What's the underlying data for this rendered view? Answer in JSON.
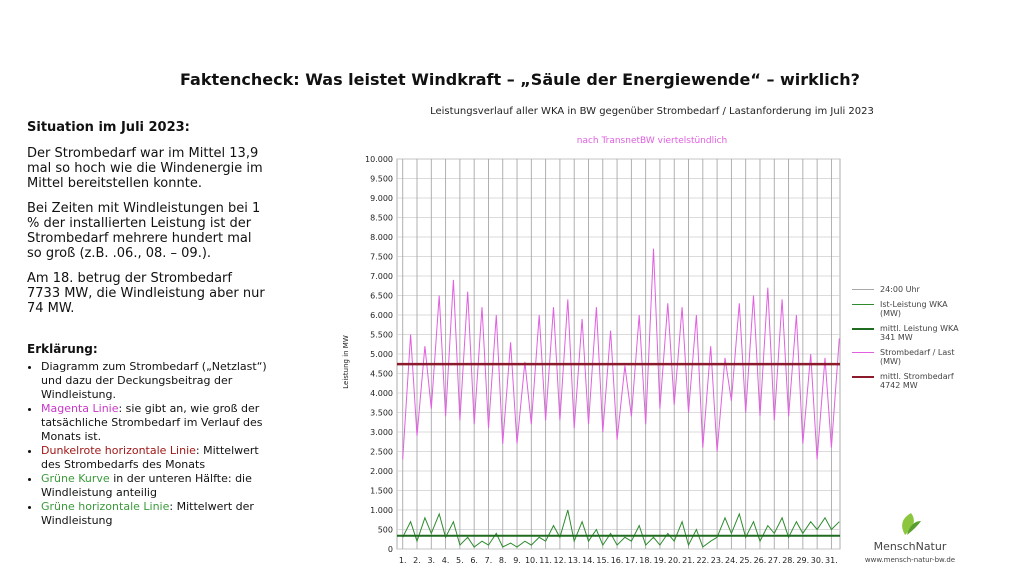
{
  "slide": {
    "title": "Faktencheck: Was leistet Windkraft – „Säule der Energiewende“ –  wirklich?",
    "heading": "Situation im Juli 2023:",
    "paragraphs": [
      "Der Strombedarf war im Mittel 13,9 mal so hoch wie die Windenergie im Mittel bereitstellen konnte.",
      "Bei Zeiten mit Windleistungen bei 1 % der installierten Leistung ist der Strombedarf mehrere hundert mal so groß (z.B. .06., 08. – 09.).",
      "Am 18. betrug der Strombedarf 7733 MW, die Windleistung aber nur 74 MW."
    ],
    "explanation_heading": "Erklärung",
    "bullets": [
      {
        "text": "Diagramm zum Strombedarf („Netzlast“) und dazu der Deckungsbeitrag der Windleistung."
      },
      {
        "lead": "Magenta Linie",
        "lead_color": "#c838c8",
        "text": ": sie gibt an, wie groß der tatsächliche Strombedarf im Verlauf des Monats ist."
      },
      {
        "lead": "Dunkelrote horizontale Linie",
        "lead_color": "#a01818",
        "text": ": Mittelwert des Strombedarfs des Monats"
      },
      {
        "lead": "Grüne Kurve",
        "lead_color": "#3a9a3a",
        "text": " in der unteren Hälfte: die Windleistung anteilig"
      },
      {
        "lead": "Grüne horizontale Linie",
        "lead_color": "#3a9a3a",
        "text": ": Mittelwert der Windleistung"
      }
    ],
    "logo": "MenschNatur",
    "url": "www.mensch-natur-bw.de"
  },
  "chart_data": {
    "type": "line",
    "title": "Leistungsverlauf aller WKA in BW gegenüber  Strombedarf / Lastanforderung im Juli 2023",
    "subtitle": "nach TransnetBW viertelstündlich",
    "ylabel": "Leistung in MW",
    "xlim": [
      0.6,
      31.6
    ],
    "ylim": [
      0,
      10000
    ],
    "grid": true,
    "day_lines": {
      "name": "24:00 Uhr",
      "color": "#a8a8a8"
    },
    "yticks": [
      0,
      500,
      {
        "value": 1000,
        "label": "1.000"
      },
      {
        "value": 1500,
        "label": "1.500"
      },
      {
        "value": 2000,
        "label": "2.000"
      },
      {
        "value": 2500,
        "label": "2.500"
      },
      {
        "value": 3000,
        "label": "3.000"
      },
      {
        "value": 3500,
        "label": "3.500"
      },
      {
        "value": 4000,
        "label": "4.000"
      },
      {
        "value": 4500,
        "label": "4.500"
      },
      {
        "value": 5000,
        "label": "5.000"
      },
      {
        "value": 5500,
        "label": "5.500"
      },
      {
        "value": 6000,
        "label": "6.000"
      },
      {
        "value": 6500,
        "label": "6.500"
      },
      {
        "value": 7000,
        "label": "7.000"
      },
      {
        "value": 7500,
        "label": "7.500"
      },
      {
        "value": 8000,
        "label": "8.000"
      },
      {
        "value": 8500,
        "label": "8.500"
      },
      {
        "value": 9000,
        "label": "9.000"
      },
      {
        "value": 9500,
        "label": "9.500"
      },
      {
        "value": 10000,
        "label": "10.000"
      }
    ],
    "xticks": [
      {
        "value": 1,
        "label": "1."
      },
      {
        "value": 2,
        "label": "2."
      },
      {
        "value": 3,
        "label": "3."
      },
      {
        "value": 4,
        "label": "4."
      },
      {
        "value": 5,
        "label": "5."
      },
      {
        "value": 6,
        "label": "6."
      },
      {
        "value": 7,
        "label": "7."
      },
      {
        "value": 8,
        "label": "8."
      },
      {
        "value": 9,
        "label": "9."
      },
      {
        "value": 10,
        "label": "10."
      },
      {
        "value": 11,
        "label": "11."
      },
      {
        "value": 12,
        "label": "12."
      },
      {
        "value": 13,
        "label": "13."
      },
      {
        "value": 14,
        "label": "14."
      },
      {
        "value": 15,
        "label": "15."
      },
      {
        "value": 16,
        "label": "16."
      },
      {
        "value": 17,
        "label": "17."
      },
      {
        "value": 18,
        "label": "18."
      },
      {
        "value": 19,
        "label": "19."
      },
      {
        "value": 20,
        "label": "20."
      },
      {
        "value": 21,
        "label": "21."
      },
      {
        "value": 22,
        "label": "22."
      },
      {
        "value": 23,
        "label": "23."
      },
      {
        "value": 24,
        "label": "24."
      },
      {
        "value": 25,
        "label": "25."
      },
      {
        "value": 26,
        "label": "26."
      },
      {
        "value": 27,
        "label": "27."
      },
      {
        "value": 28,
        "label": "28."
      },
      {
        "value": 29,
        "label": "29."
      },
      {
        "value": 30,
        "label": "30."
      },
      {
        "value": 31,
        "label": "31."
      }
    ],
    "series": [
      {
        "name": "Ist-Leistung WKA (MW)",
        "color": "#2e8b2e",
        "x": [
          1,
          1.55,
          2,
          2.55,
          3,
          3.55,
          4,
          4.55,
          5,
          5.55,
          6,
          6.55,
          7,
          7.55,
          8,
          8.55,
          9,
          9.55,
          10,
          10.55,
          11,
          11.55,
          12,
          12.55,
          13,
          13.55,
          14,
          14.55,
          15,
          15.55,
          16,
          16.55,
          17,
          17.55,
          18,
          18.55,
          19,
          19.55,
          20,
          20.55,
          21,
          21.55,
          22,
          22.55,
          23,
          23.55,
          24,
          24.55,
          25,
          25.55,
          26,
          26.55,
          27,
          27.55,
          28,
          28.55,
          29,
          29.55,
          30,
          30.55,
          31,
          31.55
        ],
        "values": [
          300,
          700,
          200,
          800,
          400,
          900,
          300,
          700,
          100,
          300,
          50,
          200,
          100,
          400,
          50,
          150,
          50,
          200,
          100,
          300,
          200,
          600,
          300,
          1000,
          200,
          700,
          200,
          500,
          100,
          400,
          100,
          300,
          200,
          600,
          100,
          300,
          100,
          400,
          200,
          700,
          100,
          500,
          50,
          200,
          300,
          800,
          400,
          900,
          300,
          700,
          200,
          600,
          400,
          800,
          300,
          700,
          400,
          700,
          500,
          800,
          500,
          700
        ]
      },
      {
        "name": "mittl. Leistung WKA 341 MW",
        "color": "#1f6b1f",
        "width": 2,
        "x": [
          0.6,
          31.6
        ],
        "values": [
          341,
          341
        ]
      },
      {
        "name": "Strombedarf / Last (MW)",
        "color": "#e060e0",
        "x": [
          1,
          1.55,
          2,
          2.55,
          3,
          3.55,
          4,
          4.55,
          5,
          5.55,
          6,
          6.55,
          7,
          7.55,
          8,
          8.55,
          9,
          9.55,
          10,
          10.55,
          11,
          11.55,
          12,
          12.55,
          13,
          13.55,
          14,
          14.55,
          15,
          15.55,
          16,
          16.55,
          17,
          17.55,
          18,
          18.55,
          19,
          19.55,
          20,
          20.55,
          21,
          21.55,
          22,
          22.55,
          23,
          23.55,
          24,
          24.55,
          25,
          25.55,
          26,
          26.55,
          27,
          27.55,
          28,
          28.55,
          29,
          29.55,
          30,
          30.55,
          31,
          31.55
        ],
        "values": [
          2300,
          5500,
          2900,
          5200,
          3600,
          6500,
          3400,
          6900,
          3300,
          6600,
          3200,
          6200,
          3100,
          6000,
          2700,
          5300,
          2700,
          4800,
          3200,
          6000,
          3300,
          6200,
          3300,
          6400,
          3100,
          5900,
          3200,
          6200,
          3000,
          5600,
          2800,
          4700,
          3400,
          6000,
          3200,
          7700,
          3600,
          6300,
          3700,
          6200,
          3500,
          6000,
          2600,
          5200,
          2500,
          4900,
          3800,
          6300,
          3500,
          6500,
          3400,
          6700,
          3300,
          6400,
          3400,
          6000,
          2700,
          5000,
          2300,
          4900,
          2600,
          5400
        ]
      },
      {
        "name": "mittl. Strombedarf 4742 MW",
        "color": "#8b1a2a",
        "width": 2.5,
        "x": [
          0.6,
          31.6
        ],
        "values": [
          4742,
          4742
        ]
      }
    ]
  }
}
